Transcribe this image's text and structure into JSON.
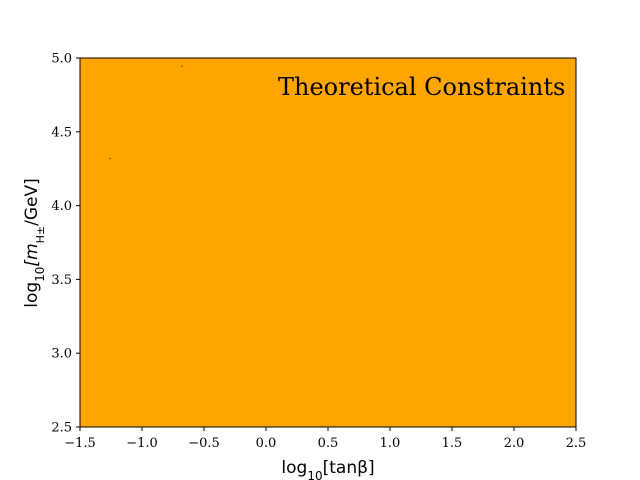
{
  "chart_data": {
    "type": "heatmap",
    "title": "",
    "annotation": "Theoretical Constraints",
    "xlabel_main": "log",
    "xlabel_sub": "10",
    "xlabel_rest": "[tanβ]",
    "ylabel_main": "log",
    "ylabel_sub": "10",
    "ylabel_rest": "[m",
    "ylabel_sub2": "H±",
    "ylabel_tail": "/GeV]",
    "xlim": [
      -1.5,
      2.5
    ],
    "ylim": [
      2.5,
      5.0
    ],
    "x_ticks": [
      -1.5,
      -1.0,
      -0.5,
      0.0,
      0.5,
      1.0,
      1.5,
      2.0,
      2.5
    ],
    "x_tick_labels": [
      "−1.5",
      "−1.0",
      "−0.5",
      "0.0",
      "0.5",
      "1.0",
      "1.5",
      "2.0",
      "2.5"
    ],
    "y_ticks": [
      2.5,
      3.0,
      3.5,
      4.0,
      4.5,
      5.0
    ],
    "y_tick_labels": [
      "2.5",
      "3.0",
      "3.5",
      "4.0",
      "4.5",
      "5.0"
    ],
    "region_color": "#ffa500",
    "grid": false,
    "artifact_points": [
      {
        "x": -0.68,
        "y": 4.945
      },
      {
        "x": -1.26,
        "y": 4.32
      }
    ]
  }
}
